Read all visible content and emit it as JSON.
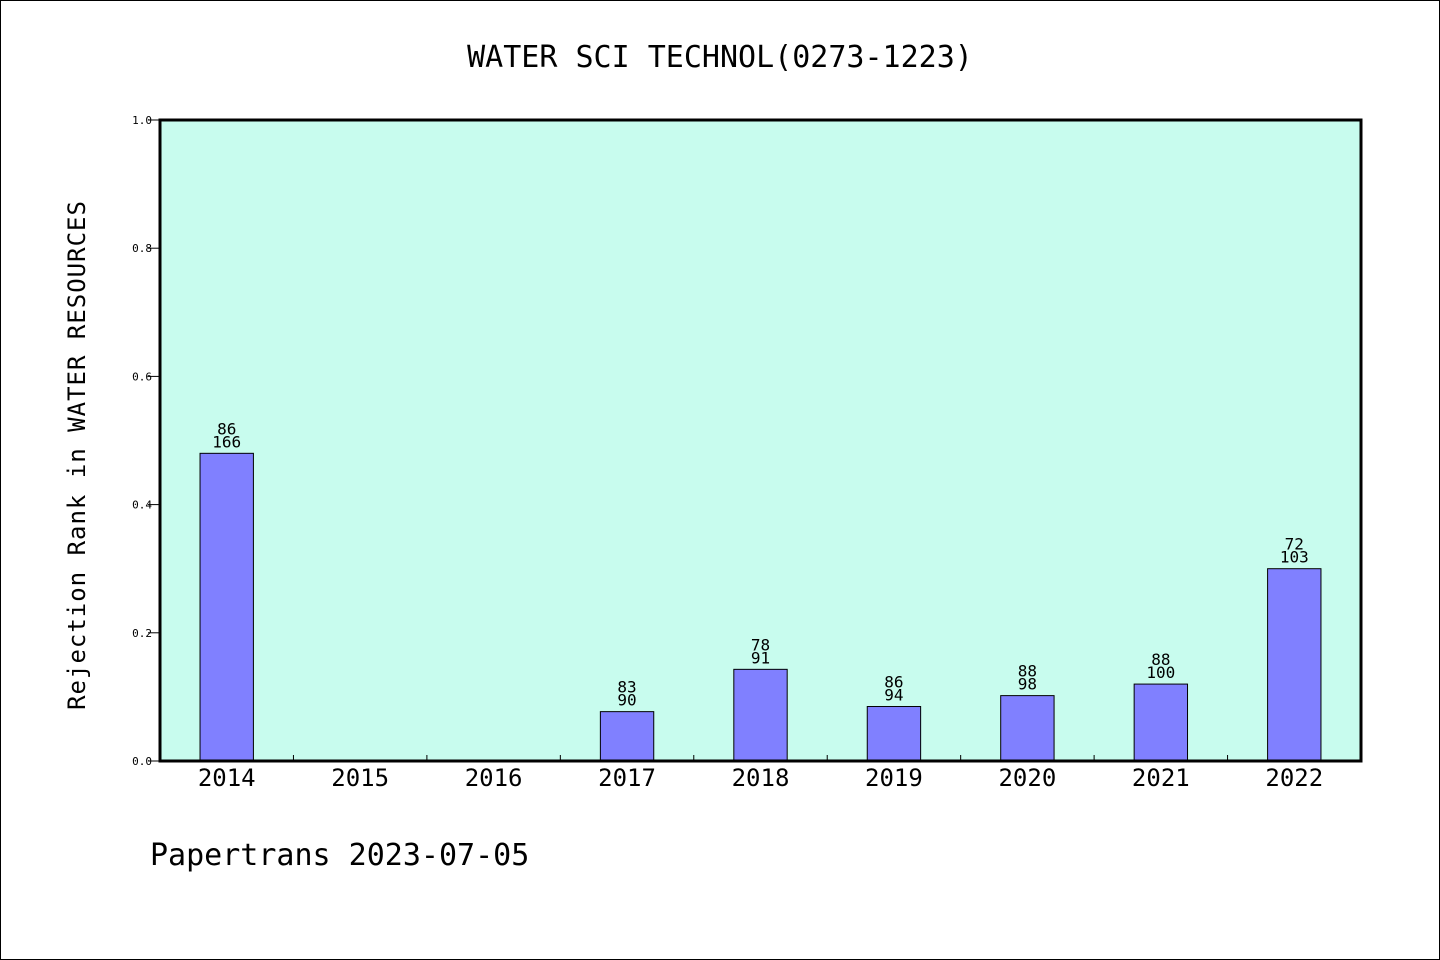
{
  "chart_data": {
    "type": "bar",
    "title": "WATER SCI TECHNOL(0273-1223)",
    "xlabel": "",
    "ylabel": "Rejection Rank in WATER RESOURCES",
    "ylim": [
      0,
      1.0
    ],
    "yticks": [
      "0.0",
      "0.2",
      "0.4",
      "0.6",
      "0.8",
      "1.0"
    ],
    "categories": [
      "2014",
      "2015",
      "2016",
      "2017",
      "2018",
      "2019",
      "2020",
      "2021",
      "2022"
    ],
    "values": [
      0.48,
      null,
      null,
      0.077,
      0.143,
      0.085,
      0.102,
      0.12,
      0.3
    ],
    "label_top": [
      "86",
      "",
      "",
      "83",
      "78",
      "86",
      "88",
      "88",
      "72"
    ],
    "label_bottom": [
      "166",
      "",
      "",
      "90",
      "91",
      "94",
      "98",
      "100",
      "103"
    ],
    "grid": false,
    "legend": "none",
    "colors": {
      "plot_bg": "#c8fcee",
      "bar": "#8080ff",
      "axis": "#000000"
    }
  },
  "footer": {
    "text": "Papertrans 2023-07-05"
  }
}
